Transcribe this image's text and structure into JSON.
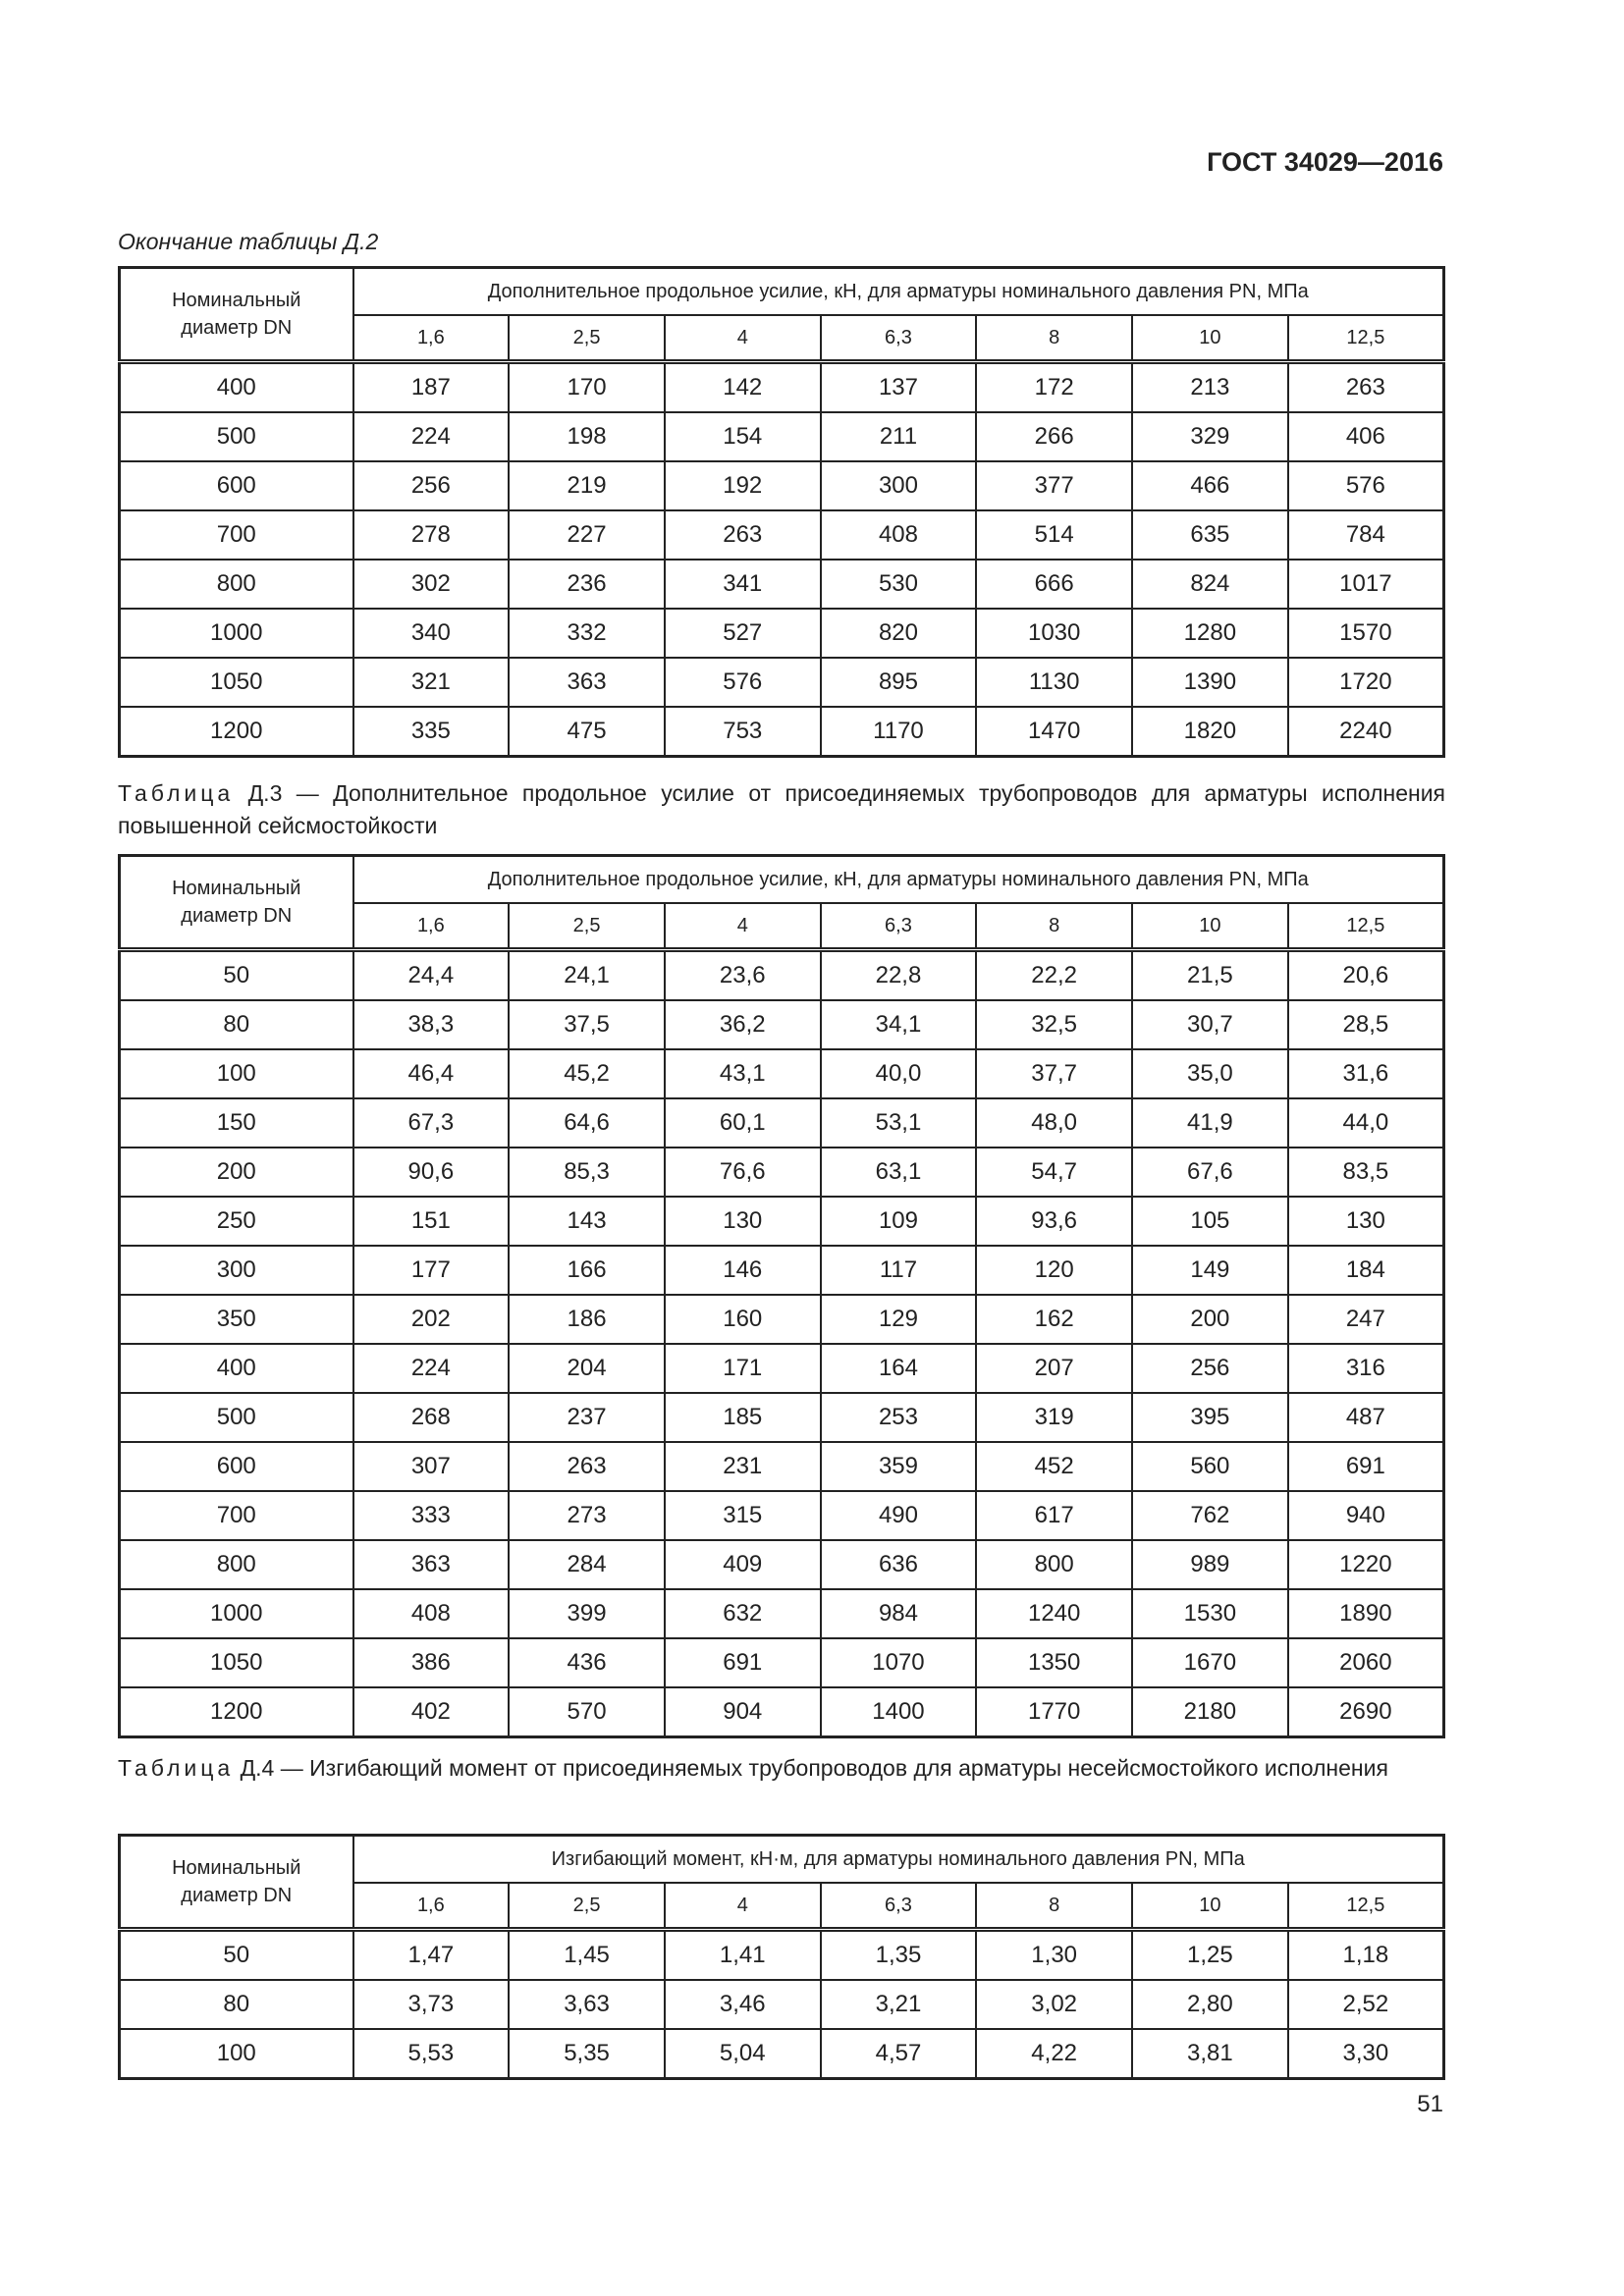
{
  "header": {
    "doc_code": "ГОСТ 34029—2016"
  },
  "columns_pn": [
    "1,6",
    "2,5",
    "4",
    "6,3",
    "8",
    "10",
    "12,5"
  ],
  "tables": [
    {
      "caption_prefix": "",
      "caption": "Окончание таблицы Д.2",
      "italic": true,
      "dn_header": "Номинальный",
      "dn_header2": "диаметр DN",
      "group_header": "Дополнительное продольное усилие, кН, для арматуры номинального давления PN, МПа",
      "rows": [
        [
          "400",
          "187",
          "170",
          "142",
          "137",
          "172",
          "213",
          "263"
        ],
        [
          "500",
          "224",
          "198",
          "154",
          "211",
          "266",
          "329",
          "406"
        ],
        [
          "600",
          "256",
          "219",
          "192",
          "300",
          "377",
          "466",
          "576"
        ],
        [
          "700",
          "278",
          "227",
          "263",
          "408",
          "514",
          "635",
          "784"
        ],
        [
          "800",
          "302",
          "236",
          "341",
          "530",
          "666",
          "824",
          "1017"
        ],
        [
          "1000",
          "340",
          "332",
          "527",
          "820",
          "1030",
          "1280",
          "1570"
        ],
        [
          "1050",
          "321",
          "363",
          "576",
          "895",
          "1130",
          "1390",
          "1720"
        ],
        [
          "1200",
          "335",
          "475",
          "753",
          "1170",
          "1470",
          "1820",
          "2240"
        ]
      ]
    },
    {
      "caption_prefix": "Таблица",
      "caption": "Д.3 — Дополнительное продольное усилие от присоединяемых трубопроводов для арматуры исполнения повышенной сейсмостойкости",
      "italic": false,
      "dn_header": "Номинальный",
      "dn_header2": "диаметр DN",
      "group_header": "Дополнительное продольное усилие, кН, для арматуры номинального давления PN, МПа",
      "rows": [
        [
          "50",
          "24,4",
          "24,1",
          "23,6",
          "22,8",
          "22,2",
          "21,5",
          "20,6"
        ],
        [
          "80",
          "38,3",
          "37,5",
          "36,2",
          "34,1",
          "32,5",
          "30,7",
          "28,5"
        ],
        [
          "100",
          "46,4",
          "45,2",
          "43,1",
          "40,0",
          "37,7",
          "35,0",
          "31,6"
        ],
        [
          "150",
          "67,3",
          "64,6",
          "60,1",
          "53,1",
          "48,0",
          "41,9",
          "44,0"
        ],
        [
          "200",
          "90,6",
          "85,3",
          "76,6",
          "63,1",
          "54,7",
          "67,6",
          "83,5"
        ],
        [
          "250",
          "151",
          "143",
          "130",
          "109",
          "93,6",
          "105",
          "130"
        ],
        [
          "300",
          "177",
          "166",
          "146",
          "117",
          "120",
          "149",
          "184"
        ],
        [
          "350",
          "202",
          "186",
          "160",
          "129",
          "162",
          "200",
          "247"
        ],
        [
          "400",
          "224",
          "204",
          "171",
          "164",
          "207",
          "256",
          "316"
        ],
        [
          "500",
          "268",
          "237",
          "185",
          "253",
          "319",
          "395",
          "487"
        ],
        [
          "600",
          "307",
          "263",
          "231",
          "359",
          "452",
          "560",
          "691"
        ],
        [
          "700",
          "333",
          "273",
          "315",
          "490",
          "617",
          "762",
          "940"
        ],
        [
          "800",
          "363",
          "284",
          "409",
          "636",
          "800",
          "989",
          "1220"
        ],
        [
          "1000",
          "408",
          "399",
          "632",
          "984",
          "1240",
          "1530",
          "1890"
        ],
        [
          "1050",
          "386",
          "436",
          "691",
          "1070",
          "1350",
          "1670",
          "2060"
        ],
        [
          "1200",
          "402",
          "570",
          "904",
          "1400",
          "1770",
          "2180",
          "2690"
        ]
      ]
    },
    {
      "caption_prefix": "Таблица",
      "caption": "Д.4 — Изгибающий момент от присоединяемых трубопроводов для арматуры несейсмостойкого исполнения",
      "italic": false,
      "dn_header": "Номинальный",
      "dn_header2": "диаметр DN",
      "group_header": "Изгибающий момент, кН·м, для арматуры номинального давления PN, МПа",
      "rows": [
        [
          "50",
          "1,47",
          "1,45",
          "1,41",
          "1,35",
          "1,30",
          "1,25",
          "1,18"
        ],
        [
          "80",
          "3,73",
          "3,63",
          "3,46",
          "3,21",
          "3,02",
          "2,80",
          "2,52"
        ],
        [
          "100",
          "5,53",
          "5,35",
          "5,04",
          "4,57",
          "4,22",
          "3,81",
          "3,30"
        ]
      ]
    }
  ],
  "footer": {
    "page_number": "51"
  }
}
